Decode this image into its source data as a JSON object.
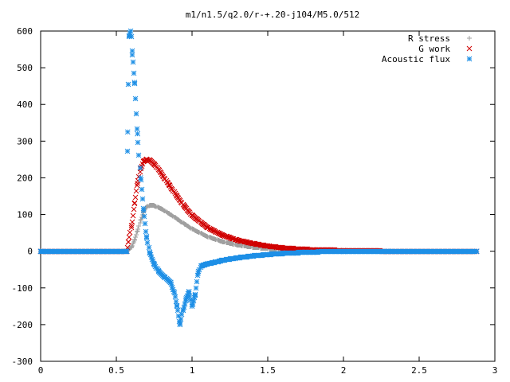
{
  "chart_data": {
    "type": "scatter",
    "title": "m1/n1.5/q2.0/r-+.20-j104/M5.0/512",
    "xlabel": "",
    "ylabel": "",
    "xlim": [
      0,
      3
    ],
    "ylim": [
      -300,
      600
    ],
    "x_ticks": [
      "0",
      "0.5",
      "1",
      "1.5",
      "2",
      "2.5",
      "3"
    ],
    "y_ticks": [
      "600",
      "500",
      "400",
      "300",
      "200",
      "100",
      "0",
      "-100",
      "-200",
      "-300"
    ],
    "grid": false,
    "legend_position": "top-right",
    "series": [
      {
        "name": "R stress",
        "color": "#a0a0a0",
        "marker": "plus",
        "points": [
          [
            0.0,
            0
          ],
          [
            0.57,
            0
          ],
          [
            0.58,
            3
          ],
          [
            0.6,
            12
          ],
          [
            0.62,
            30
          ],
          [
            0.64,
            55
          ],
          [
            0.66,
            85
          ],
          [
            0.68,
            108
          ],
          [
            0.7,
            120
          ],
          [
            0.72,
            125
          ],
          [
            0.75,
            124
          ],
          [
            0.8,
            115
          ],
          [
            0.85,
            102
          ],
          [
            0.9,
            88
          ],
          [
            0.95,
            74
          ],
          [
            1.0,
            61
          ],
          [
            1.1,
            40
          ],
          [
            1.2,
            26
          ],
          [
            1.3,
            17
          ],
          [
            1.4,
            11
          ],
          [
            1.5,
            7
          ],
          [
            1.6,
            5
          ],
          [
            1.7,
            3
          ],
          [
            1.8,
            2
          ],
          [
            2.0,
            1
          ],
          [
            2.3,
            0
          ],
          [
            2.88,
            0
          ]
        ]
      },
      {
        "name": "G work",
        "color": "#d00000",
        "marker": "cross",
        "points": [
          [
            0.0,
            0
          ],
          [
            0.57,
            0
          ],
          [
            0.58,
            25
          ],
          [
            0.6,
            70
          ],
          [
            0.62,
            130
          ],
          [
            0.64,
            185
          ],
          [
            0.66,
            225
          ],
          [
            0.68,
            245
          ],
          [
            0.7,
            250
          ],
          [
            0.72,
            248
          ],
          [
            0.75,
            238
          ],
          [
            0.8,
            210
          ],
          [
            0.85,
            180
          ],
          [
            0.9,
            150
          ],
          [
            0.95,
            122
          ],
          [
            1.0,
            98
          ],
          [
            1.1,
            65
          ],
          [
            1.2,
            44
          ],
          [
            1.3,
            30
          ],
          [
            1.4,
            21
          ],
          [
            1.5,
            14
          ],
          [
            1.6,
            9
          ],
          [
            1.7,
            6
          ],
          [
            1.8,
            4
          ],
          [
            2.0,
            2
          ],
          [
            2.3,
            0
          ],
          [
            2.88,
            0
          ]
        ]
      },
      {
        "name": "Acoustic flux",
        "color": "#1e8fe6",
        "marker": "star",
        "points": [
          [
            0.0,
            0
          ],
          [
            0.57,
            0
          ],
          [
            0.575,
            325
          ],
          [
            0.585,
            585
          ],
          [
            0.595,
            600
          ],
          [
            0.605,
            535
          ],
          [
            0.62,
            460
          ],
          [
            0.64,
            320
          ],
          [
            0.66,
            200
          ],
          [
            0.68,
            110
          ],
          [
            0.7,
            40
          ],
          [
            0.72,
            -5
          ],
          [
            0.75,
            -35
          ],
          [
            0.78,
            -55
          ],
          [
            0.82,
            -70
          ],
          [
            0.86,
            -85
          ],
          [
            0.88,
            -110
          ],
          [
            0.9,
            -150
          ],
          [
            0.92,
            -200
          ],
          [
            0.94,
            -160
          ],
          [
            0.96,
            -130
          ],
          [
            0.98,
            -110
          ],
          [
            1.0,
            -150
          ],
          [
            1.02,
            -120
          ],
          [
            1.04,
            -60
          ],
          [
            1.06,
            -40
          ],
          [
            1.1,
            -35
          ],
          [
            1.2,
            -25
          ],
          [
            1.3,
            -18
          ],
          [
            1.4,
            -13
          ],
          [
            1.5,
            -9
          ],
          [
            1.6,
            -6
          ],
          [
            1.7,
            -4
          ],
          [
            1.8,
            -2
          ],
          [
            2.0,
            -1
          ],
          [
            2.3,
            0
          ],
          [
            2.88,
            0
          ]
        ]
      }
    ]
  }
}
